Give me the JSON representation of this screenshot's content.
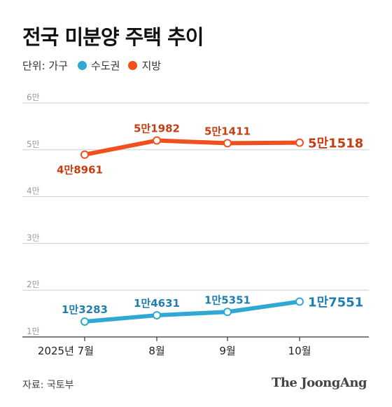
{
  "header": {
    "title": "전국 미분양 주택 추이"
  },
  "legend": {
    "unit": "단위: 가구",
    "items": [
      {
        "label": "수도권",
        "color": "#2fa8d6"
      },
      {
        "label": "지방",
        "color": "#f0501e"
      }
    ]
  },
  "chart_data": {
    "type": "line",
    "categories": [
      "2025년 7월",
      "8월",
      "9월",
      "10월"
    ],
    "y_ticks": [
      "1만",
      "2만",
      "3만",
      "4만",
      "5만",
      "6만"
    ],
    "ylim": [
      10000,
      60000
    ],
    "grid": true,
    "series": [
      {
        "name": "지방",
        "color": "#f0501e",
        "label_color": "#c83c12",
        "values": [
          48961,
          51982,
          51411,
          51518
        ],
        "labels": [
          "4만8961",
          "5만1982",
          "5만1411",
          "5만1518"
        ]
      },
      {
        "name": "수도권",
        "color": "#2fa8d6",
        "label_color": "#1e7fb0",
        "values": [
          13283,
          14631,
          15351,
          17551
        ],
        "labels": [
          "1만3283",
          "1만4631",
          "1만5351",
          "1만7551"
        ]
      }
    ]
  },
  "footer": {
    "source": "자료: 국토부",
    "brand": "The JoongAng"
  }
}
